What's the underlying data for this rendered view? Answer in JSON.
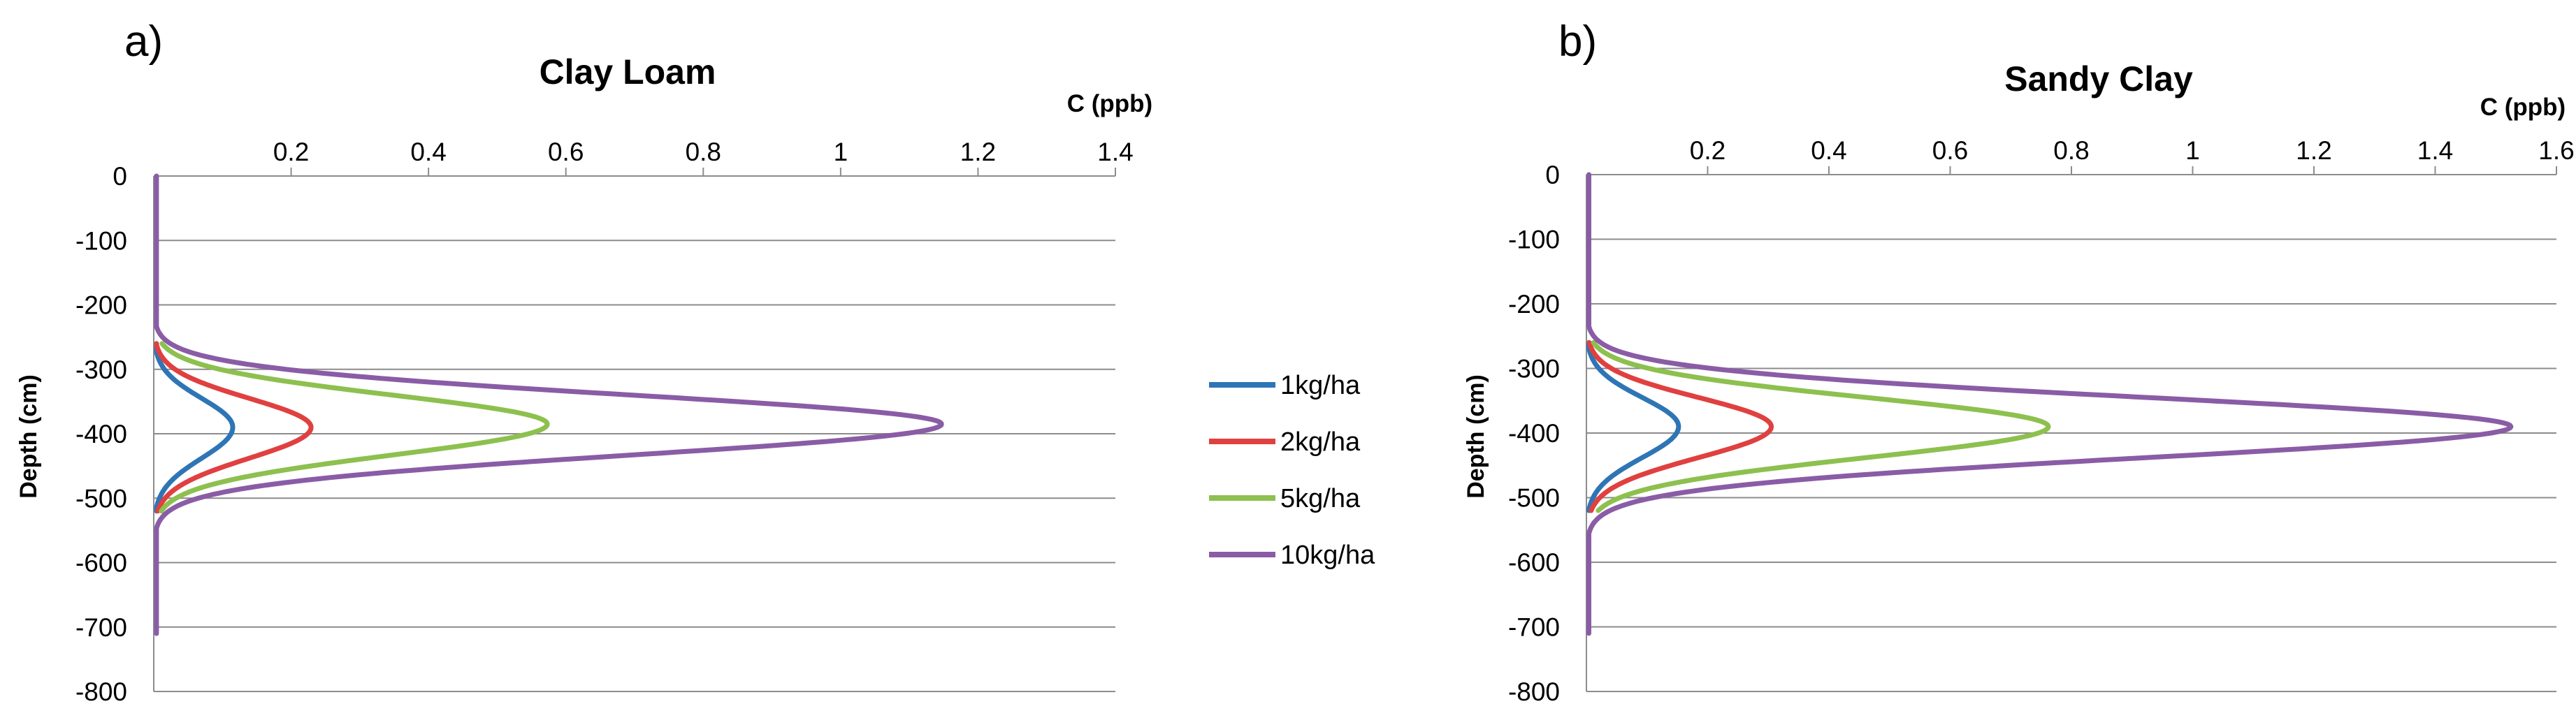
{
  "chart_data": [
    {
      "type": "line",
      "panel_label": "a)",
      "title": "Clay Loam",
      "xlabel": "C (ppb)",
      "ylabel": "Depth (cm)",
      "xlim": [
        0,
        1.4
      ],
      "ylim": [
        -800,
        0
      ],
      "xticks": [
        "0.2",
        "0.4",
        "0.6",
        "0.8",
        "1",
        "1.2",
        "1.4"
      ],
      "yticks": [
        "0",
        "-100",
        "-200",
        "-300",
        "-400",
        "-500",
        "-600",
        "-700",
        "-800"
      ],
      "grid": true,
      "x_axis_position": "top",
      "series": [
        {
          "name": "1kg/ha",
          "color": "#2e75b6",
          "peak": 0.115,
          "peak_depth": -390,
          "spread_upper": 45,
          "spread_lower": 48,
          "depth_range": [
            -520,
            -260
          ]
        },
        {
          "name": "2kg/ha",
          "color": "#e04040",
          "peak": 0.229,
          "peak_depth": -390,
          "spread_upper": 45,
          "spread_lower": 48,
          "depth_range": [
            -520,
            -260
          ]
        },
        {
          "name": "5kg/ha",
          "color": "#8dc04f",
          "peak": 0.573,
          "peak_depth": -385,
          "spread_upper": 45,
          "spread_lower": 48,
          "depth_range": [
            -520,
            -260
          ]
        },
        {
          "name": "10kg/ha",
          "color": "#8a5ca6",
          "peak": 1.147,
          "peak_depth": -385,
          "spread_upper": 45,
          "spread_lower": 48,
          "depth_range": [
            -710,
            0
          ]
        }
      ]
    },
    {
      "type": "line",
      "panel_label": "b)",
      "title": "Sandy Clay",
      "xlabel": "C (ppb)",
      "ylabel": "Depth (cm)",
      "xlim": [
        0,
        1.6
      ],
      "ylim": [
        -800,
        0
      ],
      "xticks": [
        "0.2",
        "0.4",
        "0.6",
        "0.8",
        "1",
        "1.2",
        "1.4",
        "1.6"
      ],
      "yticks": [
        "0",
        "-100",
        "-200",
        "-300",
        "-400",
        "-500",
        "-600",
        "-700",
        "-800"
      ],
      "grid": true,
      "x_axis_position": "top",
      "series": [
        {
          "name": "1kg/ha",
          "color": "#2e75b6",
          "peak": 0.152,
          "peak_depth": -390,
          "spread_upper": 45,
          "spread_lower": 48,
          "depth_range": [
            -520,
            -260
          ]
        },
        {
          "name": "2kg/ha",
          "color": "#e04040",
          "peak": 0.305,
          "peak_depth": -390,
          "spread_upper": 45,
          "spread_lower": 48,
          "depth_range": [
            -520,
            -260
          ]
        },
        {
          "name": "5kg/ha",
          "color": "#8dc04f",
          "peak": 0.762,
          "peak_depth": -390,
          "spread_upper": 45,
          "spread_lower": 48,
          "depth_range": [
            -520,
            -260
          ]
        },
        {
          "name": "10kg/ha",
          "color": "#8a5ca6",
          "peak": 1.525,
          "peak_depth": -390,
          "spread_upper": 45,
          "spread_lower": 48,
          "depth_range": [
            -710,
            0
          ]
        }
      ]
    }
  ],
  "legend": {
    "placement": "center",
    "items": [
      {
        "label": "1kg/ha",
        "color": "#2e75b6"
      },
      {
        "label": "2kg/ha",
        "color": "#e04040"
      },
      {
        "label": "5kg/ha",
        "color": "#8dc04f"
      },
      {
        "label": "10kg/ha",
        "color": "#8a5ca6"
      }
    ]
  }
}
